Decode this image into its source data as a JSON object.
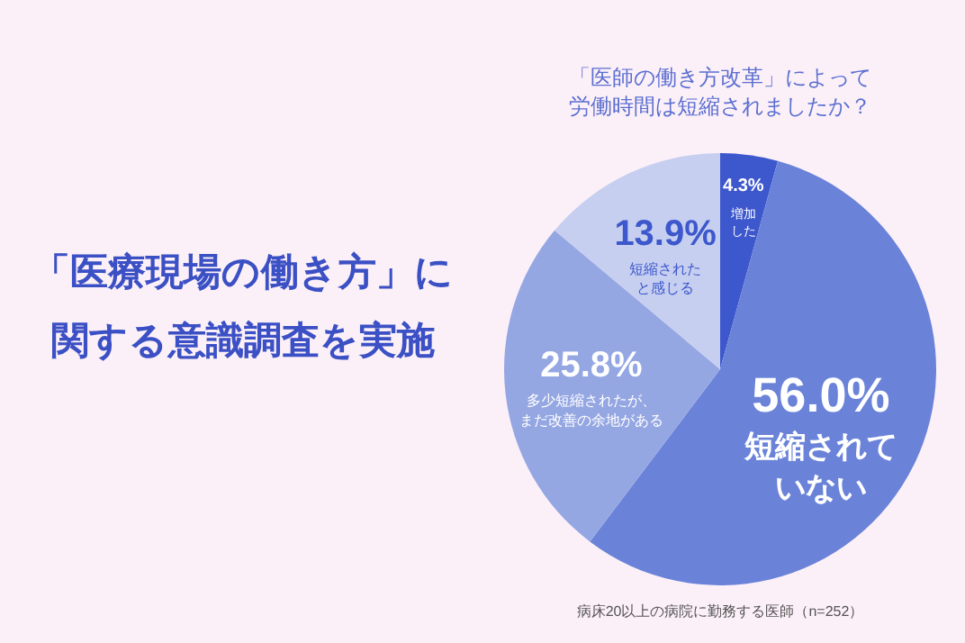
{
  "chart_data": {
    "type": "pie",
    "title": "「医療現場の働き方」に関する意識調査を実施",
    "subtitle": "「医師の働き方改革」によって労働時間は短縮されましたか？",
    "categories": [
      "増加した",
      "短縮されていない",
      "多少短縮されたが、まだ改善の余地がある",
      "短縮されたと感じる"
    ],
    "values": [
      4.3,
      56.0,
      25.8,
      13.9
    ],
    "value_labels": [
      "4.3%",
      "56.0%",
      "25.8%",
      "13.9%"
    ],
    "colors": [
      "#3d57cc",
      "#6a83d9",
      "#95a7e3",
      "#c6cff0"
    ],
    "annotations": [
      "病床20以上の病院に勤務する医師（n=252）"
    ]
  }
}
